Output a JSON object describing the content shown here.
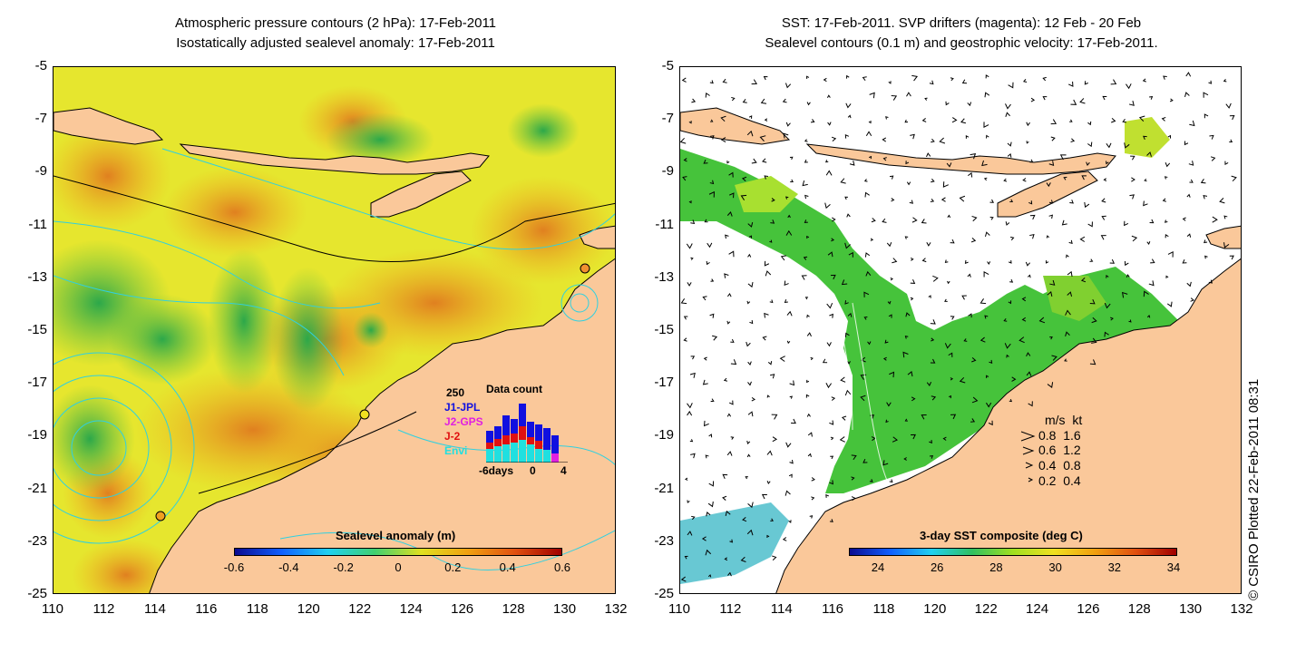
{
  "left_panel": {
    "title_line1": "Atmospheric pressure contours (2 hPa): 17-Feb-2011",
    "title_line2": "Isostatically adjusted sealevel anomaly: 17-Feb-2011",
    "colorbar_title": "Sealevel anomaly (m)",
    "colorbar_ticks": [
      "-0.6",
      "-0.4",
      "-0.2",
      "0",
      "0.2",
      "0.4",
      "0.6"
    ],
    "inset": {
      "count_label": "250",
      "title": "Data count",
      "series": [
        {
          "name": "J1-JPL",
          "color": "#1010e0"
        },
        {
          "name": "J2-GPS",
          "color": "#e020e0"
        },
        {
          "name": "J-2",
          "color": "#e01010"
        },
        {
          "name": "Envi",
          "color": "#20e0e0"
        }
      ],
      "x_labels": [
        "-6days",
        "0",
        "4"
      ]
    }
  },
  "right_panel": {
    "title_line1": "SST: 17-Feb-2011. SVP drifters (magenta): 12 Feb - 20 Feb",
    "title_line2": "Sealevel contours (0.1 m) and geostrophic velocity: 17-Feb-2011.",
    "colorbar_title": "3-day SST composite (deg C)",
    "colorbar_ticks": [
      "24",
      "26",
      "28",
      "30",
      "32",
      "34"
    ],
    "speed_legend": {
      "header": "m/s  kt",
      "rows": [
        "0.8  1.6",
        "0.6  1.2",
        "0.4  0.8",
        "0.2  0.4"
      ]
    }
  },
  "axes": {
    "lat_ticks": [
      "-5",
      "-7",
      "-9",
      "-11",
      "-13",
      "-15",
      "-17",
      "-19",
      "-21",
      "-23",
      "-25"
    ],
    "lon_ticks": [
      "110",
      "112",
      "114",
      "116",
      "118",
      "120",
      "122",
      "124",
      "126",
      "128",
      "130",
      "132"
    ]
  },
  "copyright": "© CSIRO Plotted 22-Feb-2011 08:31",
  "colors": {
    "land": "#fac89a",
    "ssh_yellow": "#e8e830",
    "ssh_orange": "#f0b020",
    "ssh_green": "#50c050",
    "sst_green": "#38c028"
  }
}
